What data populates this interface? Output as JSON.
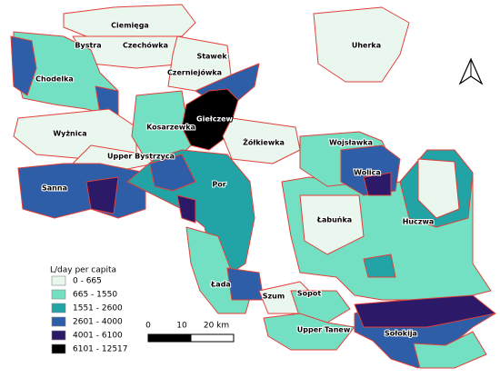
{
  "map": {
    "regions": [
      {
        "label": "Ciemięga"
      },
      {
        "label": "Bystra"
      },
      {
        "label": "Czechówka"
      },
      {
        "label": "Stawek"
      },
      {
        "label": "Uherka"
      },
      {
        "label": "Chodelka"
      },
      {
        "label": "Czerniejówka"
      },
      {
        "label": "Kosarzewka"
      },
      {
        "label": "Giełczew"
      },
      {
        "label": "Wyżnica"
      },
      {
        "label": "Upper Bystrzyca"
      },
      {
        "label": "Żółkiewka"
      },
      {
        "label": "Wojsławka"
      },
      {
        "label": "Wolica"
      },
      {
        "label": "Sanna"
      },
      {
        "label": "Por"
      },
      {
        "label": "Łabuńka"
      },
      {
        "label": "Huczwa"
      },
      {
        "label": "Łada"
      },
      {
        "label": "Szum"
      },
      {
        "label": "Sopot"
      },
      {
        "label": "Upper Tanew"
      },
      {
        "label": "Sołokija"
      }
    ],
    "legend": {
      "title": "L/day per capita",
      "classes": [
        {
          "label": "0 - 665",
          "color": "#e9f7ee"
        },
        {
          "label": "665 - 1550",
          "color": "#74e0c3"
        },
        {
          "label": "1551 - 2600",
          "color": "#22a3a6"
        },
        {
          "label": "2601 - 4000",
          "color": "#2e5ea8"
        },
        {
          "label": "4001 - 6100",
          "color": "#2c1a68"
        },
        {
          "label": "6101 - 12517",
          "color": "#000000"
        }
      ]
    },
    "scale_bar": {
      "labels": [
        "0",
        "10",
        "20 km"
      ]
    }
  }
}
